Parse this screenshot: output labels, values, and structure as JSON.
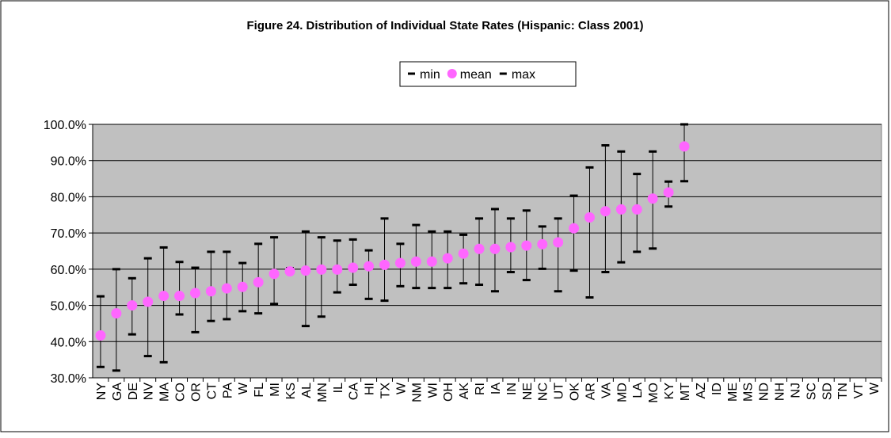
{
  "chart_data": {
    "type": "hilo",
    "title": "Figure 24. Distribution of Individual State Rates (Hispanic: Class 2001)",
    "categories": [
      "NY",
      "GA",
      "DE",
      "NV",
      "MA",
      "CO",
      "OR",
      "CT",
      "PA",
      "W",
      "FL",
      "MI",
      "KS",
      "AL",
      "MN",
      "IL",
      "CA",
      "HI",
      "TX",
      "W",
      "NM",
      "WI",
      "OH",
      "AK",
      "RI",
      "IA",
      "IN",
      "NE",
      "NC",
      "UT",
      "OK",
      "AR",
      "VA",
      "MD",
      "LA",
      "MO",
      "KY",
      "MT",
      "AZ",
      "ID",
      "ME",
      "MS",
      "ND",
      "NH",
      "NJ",
      "SC",
      "SD",
      "TN",
      "VT",
      "W"
    ],
    "series": [
      {
        "name": "min",
        "color": "#000000",
        "values": [
          33.0,
          32.0,
          42.0,
          36.0,
          34.3,
          47.5,
          42.6,
          45.7,
          46.2,
          48.4,
          47.8,
          50.4,
          59.3,
          44.3,
          46.9,
          53.6,
          55.7,
          51.8,
          51.3,
          55.3,
          54.8,
          54.8,
          54.8,
          56.1,
          55.7,
          53.9,
          59.2,
          57.0,
          60.1,
          53.9,
          59.6,
          52.2,
          59.2,
          61.9,
          64.8,
          65.7,
          77.3,
          84.3,
          null,
          null,
          null,
          null,
          null,
          null,
          null,
          null,
          null,
          null,
          null,
          null
        ]
      },
      {
        "name": "mean",
        "color": "#ff66ff",
        "values": [
          41.7,
          47.8,
          50.0,
          51.0,
          52.6,
          52.6,
          53.4,
          53.9,
          54.7,
          55.1,
          56.4,
          58.7,
          59.4,
          59.6,
          59.9,
          59.9,
          60.4,
          60.8,
          61.2,
          61.7,
          62.1,
          62.1,
          63.0,
          64.3,
          65.6,
          65.6,
          66.1,
          66.5,
          66.9,
          67.4,
          71.3,
          74.3,
          76.0,
          76.5,
          76.5,
          79.5,
          81.2,
          93.9,
          null,
          null,
          null,
          null,
          null,
          null,
          null,
          null,
          null,
          null,
          null,
          null
        ]
      },
      {
        "name": "max",
        "color": "#000000",
        "values": [
          52.5,
          60.0,
          57.5,
          63.0,
          66.0,
          62.0,
          60.4,
          64.8,
          64.8,
          61.7,
          67.0,
          68.8,
          60.3,
          70.4,
          68.8,
          67.9,
          68.2,
          65.2,
          74.0,
          67.0,
          72.2,
          70.4,
          70.4,
          69.5,
          74.0,
          76.6,
          74.0,
          76.2,
          71.8,
          74.0,
          80.3,
          88.1,
          94.2,
          92.5,
          86.3,
          92.5,
          84.2,
          100.0,
          null,
          null,
          null,
          null,
          null,
          null,
          null,
          null,
          null,
          null,
          null,
          null
        ]
      }
    ],
    "ylim": [
      30,
      100
    ],
    "yticks": [
      {
        "value": 30,
        "label": "30.0%"
      },
      {
        "value": 40,
        "label": "40.0%"
      },
      {
        "value": 50,
        "label": "50.0%"
      },
      {
        "value": 60,
        "label": "60.0%"
      },
      {
        "value": 70,
        "label": "70.0%"
      },
      {
        "value": 80,
        "label": "80.0%"
      },
      {
        "value": 90,
        "label": "90.0%"
      },
      {
        "value": 100,
        "label": "100.0%"
      }
    ],
    "grid": true,
    "plot_background": "#c0c0c0"
  }
}
